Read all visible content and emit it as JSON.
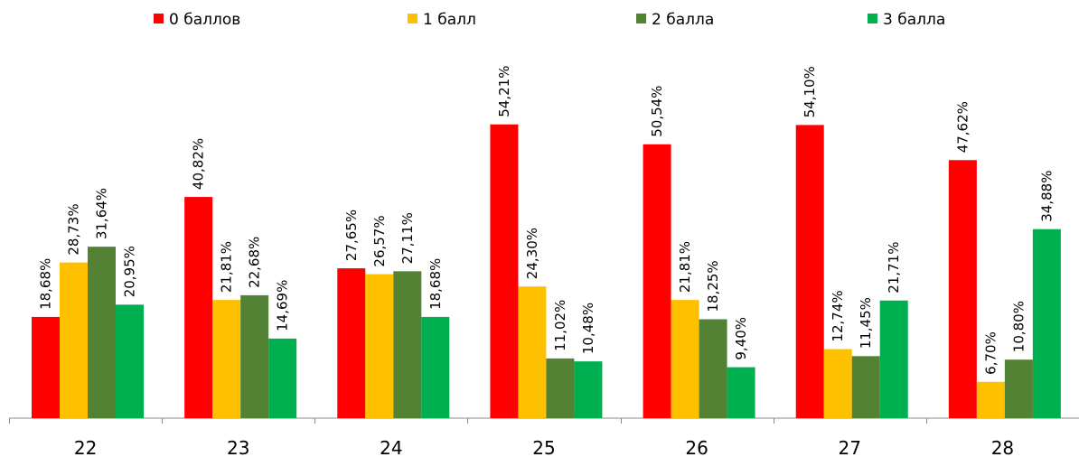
{
  "chart_data": {
    "type": "bar",
    "categories": [
      "22",
      "23",
      "24",
      "25",
      "26",
      "27",
      "28"
    ],
    "series": [
      {
        "name": "0 баллов",
        "color": "#ff0000",
        "values": [
          18.68,
          40.82,
          27.65,
          54.21,
          50.54,
          54.1,
          47.62
        ],
        "value_labels": [
          "18,68%",
          "40,82%",
          "27,65%",
          "54,21%",
          "50,54%",
          "54,10%",
          "47,62%"
        ]
      },
      {
        "name": "1 балл",
        "color": "#ffc000",
        "values": [
          28.73,
          21.81,
          26.57,
          24.3,
          21.81,
          12.74,
          6.7
        ],
        "value_labels": [
          "28,73%",
          "21,81%",
          "26,57%",
          "24,30%",
          "21,81%",
          "12,74%",
          "6,70%"
        ]
      },
      {
        "name": "2 балла",
        "color": "#548235",
        "values": [
          31.64,
          22.68,
          27.11,
          11.02,
          18.25,
          11.45,
          10.8
        ],
        "value_labels": [
          "31,64%",
          "22,68%",
          "27,11%",
          "11,02%",
          "18,25%",
          "11,45%",
          "10,80%"
        ]
      },
      {
        "name": "3 балла",
        "color": "#00b050",
        "values": [
          20.95,
          14.69,
          18.68,
          10.48,
          9.4,
          21.71,
          34.88
        ],
        "value_labels": [
          "20,95%",
          "14,69%",
          "18,68%",
          "10,48%",
          "9,40%",
          "21,71%",
          "34,88%"
        ]
      }
    ],
    "legend": "top"
  }
}
